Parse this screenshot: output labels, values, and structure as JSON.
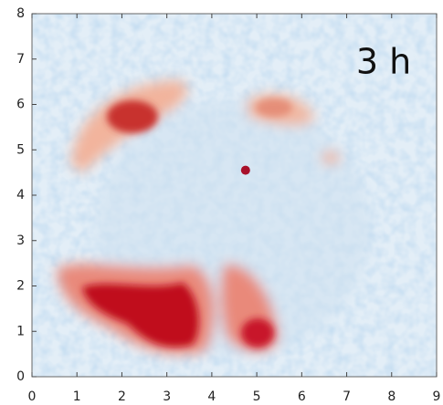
{
  "chart_data": {
    "type": "heatmap",
    "annotation": "3 h",
    "xlim": [
      0,
      9
    ],
    "ylim": [
      0,
      8
    ],
    "xticks": [
      0,
      1,
      2,
      3,
      4,
      5,
      6,
      7,
      8,
      9
    ],
    "yticks": [
      0,
      1,
      2,
      3,
      4,
      5,
      6,
      7,
      8
    ],
    "points": {
      "x": [
        4.75
      ],
      "y": [
        4.55
      ],
      "color": "#a8102a"
    }
  }
}
